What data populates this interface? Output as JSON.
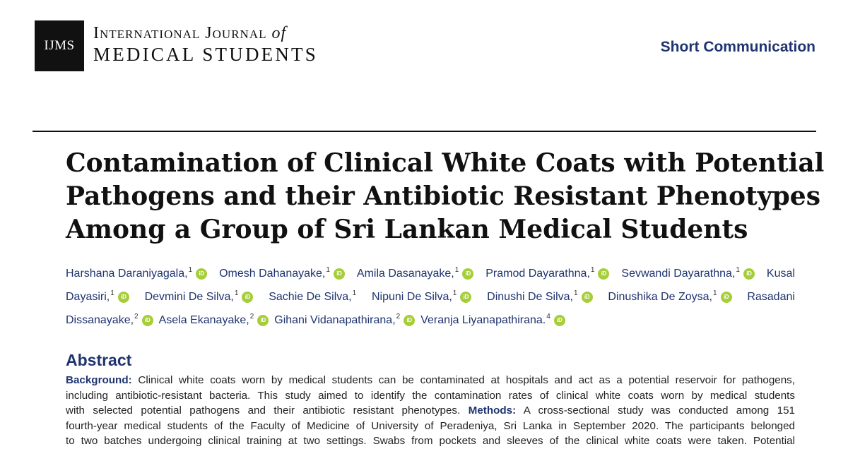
{
  "journal": {
    "logo_text": "IJMS",
    "name_line1_main": "International Journal",
    "name_line1_of": "of",
    "name_line2": "MEDICAL STUDENTS"
  },
  "article_type": "Short Communication",
  "title_lines": [
    "Contamination of Clinical White Coats with Potential",
    "Pathogens and their Antibiotic Resistant Phenotypes",
    "Among a Group of Sri Lankan Medical Students"
  ],
  "authors": {
    "line1": [
      {
        "name": "Harshana Daraniyagala,",
        "sup": "1",
        "orcid": true
      },
      {
        "name": "Omesh Dahanayake,",
        "sup": "1",
        "orcid": true
      },
      {
        "name": "Amila Dasanayake,",
        "sup": "1",
        "orcid": true
      },
      {
        "name": "Pramod Dayarathna,",
        "sup": "1",
        "orcid": true
      },
      {
        "name": "Sevwandi Dayarathna,",
        "sup": "1",
        "orcid": true
      },
      {
        "name": "Kusal",
        "sup": "",
        "orcid": false
      }
    ],
    "line2": [
      {
        "name": "Dayasiri,",
        "sup": "1",
        "orcid": true
      },
      {
        "name": "Devmini De Silva,",
        "sup": "1",
        "orcid": true
      },
      {
        "name": "Sachie De Silva,",
        "sup": "1",
        "orcid": false
      },
      {
        "name": "Nipuni De Silva,",
        "sup": "1",
        "orcid": true
      },
      {
        "name": "Dinushi De Silva,",
        "sup": "1",
        "orcid": true
      },
      {
        "name": "Dinushika De Zoysa,",
        "sup": "1",
        "orcid": true
      },
      {
        "name": "Rasadani",
        "sup": "",
        "orcid": false
      }
    ],
    "line3": [
      {
        "name": "Dissanayake,",
        "sup": "2",
        "orcid": true
      },
      {
        "name": "Asela Ekanayake,",
        "sup": "2",
        "orcid": true
      },
      {
        "name": "Gihani Vidanapathirana,",
        "sup": "2",
        "orcid": true
      },
      {
        "name": "Veranja Liyanapathirana.",
        "sup": "4",
        "orcid": true
      }
    ],
    "orcid_label": "iD"
  },
  "abstract": {
    "heading": "Abstract",
    "line1_label": "Background:",
    "line1_text": " Clinical white coats worn by medical students can be contaminated at hospitals and act as a potential reservoir for pathogens,",
    "line2": "including antibiotic-resistant bacteria. This study aimed to identify the contamination rates of clinical white coats worn by medical students",
    "line3_text": "with selected potential pathogens and their antibiotic resistant phenotypes. ",
    "line3_label": "Methods:",
    "line3_text2": " A cross-sectional study was conducted among 151",
    "line4": "fourth-year medical students of the Faculty of Medicine of University of Peradeniya, Sri Lanka in September 2020. The participants belonged",
    "line5": "to two batches undergoing clinical training at two settings. Swabs from pockets and sleeves of the clinical white coats were taken. Potential"
  },
  "colors": {
    "accent": "#1f3470",
    "orcid": "#a6ce39",
    "logo_bg": "#111111"
  }
}
